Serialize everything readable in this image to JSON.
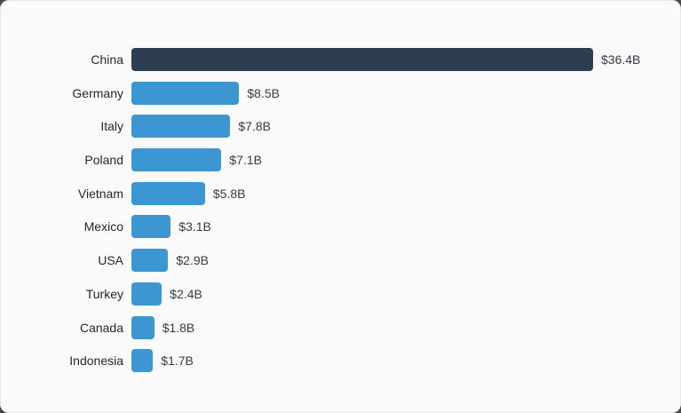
{
  "page": {
    "card_background": "#fafafa",
    "outer_background": "#474747",
    "border_color": "#e9e9e9"
  },
  "chart_data": {
    "type": "bar",
    "orientation": "horizontal",
    "title": "",
    "xlabel": "",
    "ylabel": "",
    "categories": [
      "China",
      "Germany",
      "Italy",
      "Poland",
      "Vietnam",
      "Mexico",
      "USA",
      "Turkey",
      "Canada",
      "Indonesia"
    ],
    "values": [
      36.4,
      8.5,
      7.8,
      7.1,
      5.8,
      3.1,
      2.9,
      2.4,
      1.8,
      1.7
    ],
    "value_labels": [
      "$36.4B",
      "$8.5B",
      "$7.8B",
      "$7.1B",
      "$5.8B",
      "$3.1B",
      "$2.9B",
      "$2.4B",
      "$1.8B",
      "$1.7B"
    ],
    "bar_colors": [
      "#2c3e50",
      "#3b96d2",
      "#3b96d2",
      "#3b96d2",
      "#3b96d2",
      "#3b96d2",
      "#3b96d2",
      "#3b96d2",
      "#3b96d2",
      "#3b96d2"
    ],
    "xlim": [
      0,
      36.4
    ],
    "grid": false,
    "legend": false,
    "value_unit": "billions USD",
    "label_color": "#1f2430",
    "value_color": "#323c46"
  }
}
